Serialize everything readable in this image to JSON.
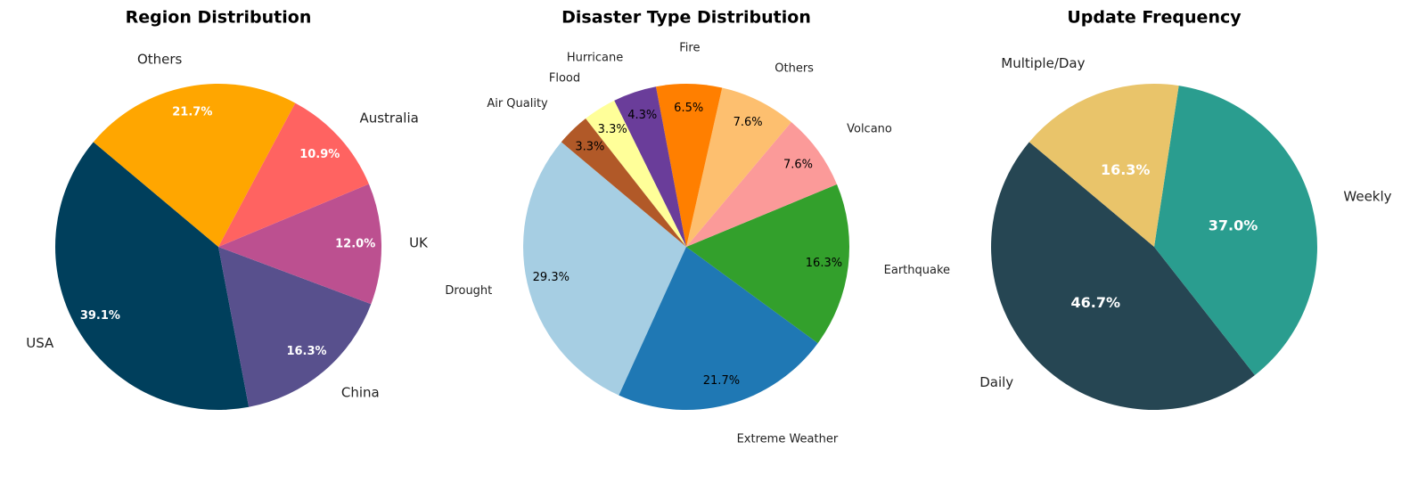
{
  "chart_data": [
    {
      "type": "pie",
      "title": "Region Distribution",
      "categories": [
        "USA",
        "China",
        "UK",
        "Australia",
        "Others"
      ],
      "values": [
        39.1,
        16.3,
        12.0,
        10.9,
        21.7
      ],
      "value_labels": [
        "39.1%",
        "16.3%",
        "12.0%",
        "10.9%",
        "21.7%"
      ],
      "colors": [
        "#003f5c",
        "#58508d",
        "#bc5090",
        "#ff6361",
        "#ffa600"
      ],
      "startangle": 140,
      "pct_color": "#ffffff",
      "pct_bold": true
    },
    {
      "type": "pie",
      "title": "Disaster Type Distribution",
      "categories": [
        "Drought",
        "Extreme Weather",
        "Earthquake",
        "Volcano",
        "Others",
        "Fire",
        "Hurricane",
        "Flood",
        "Air Quality"
      ],
      "values": [
        29.3,
        21.7,
        16.3,
        7.6,
        7.6,
        6.5,
        4.3,
        3.3,
        3.3
      ],
      "value_labels": [
        "29.3%",
        "21.7%",
        "16.3%",
        "7.6%",
        "7.6%",
        "6.5%",
        "4.3%",
        "3.3%",
        "3.3%"
      ],
      "colors": [
        "#a6cee3",
        "#1f78b4",
        "#33a02c",
        "#fb9a99",
        "#fdbf6f",
        "#ff7f00",
        "#6a3d9a",
        "#ffff99",
        "#b15928"
      ],
      "startangle": 140,
      "pct_color": "#000000",
      "pct_bold": false
    },
    {
      "type": "pie",
      "title": "Update Frequency",
      "categories": [
        "Daily",
        "Weekly",
        "Multiple/Day"
      ],
      "values": [
        46.7,
        37.0,
        16.3
      ],
      "value_labels": [
        "46.7%",
        "37.0%",
        "16.3%"
      ],
      "colors": [
        "#264653",
        "#2a9d8f",
        "#e9c46a"
      ],
      "startangle": 140,
      "pct_color": "#ffffff",
      "pct_bold": true
    }
  ]
}
